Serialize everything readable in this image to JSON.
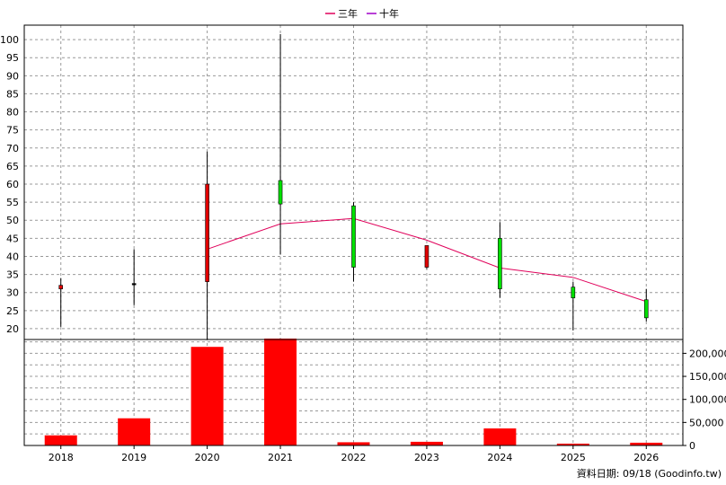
{
  "chart_data": {
    "type": "candlestick-with-volume",
    "legend": [
      {
        "name": "三年",
        "color": "#e0005a"
      },
      {
        "name": "十年",
        "color": "#a000c8"
      }
    ],
    "categories": [
      "2018",
      "2019",
      "2020",
      "2021",
      "2022",
      "2023",
      "2024",
      "2025",
      "2026"
    ],
    "price_axis": {
      "range": [
        17,
        104
      ],
      "ticks": [
        20,
        25,
        30,
        35,
        40,
        45,
        50,
        55,
        60,
        65,
        70,
        75,
        80,
        85,
        90,
        95,
        100
      ]
    },
    "candles": [
      {
        "open": 31,
        "high": 34,
        "low": 20.5,
        "close": 32,
        "color": "#e00000"
      },
      {
        "open": 32.5,
        "high": 42,
        "low": 26.5,
        "close": 32.5,
        "color": "#000000"
      },
      {
        "open": 33,
        "high": 69,
        "low": 17,
        "close": 60,
        "color": "#e00000"
      },
      {
        "open": 61,
        "high": 101.5,
        "low": 40.5,
        "close": 54.5,
        "color": "#00e000"
      },
      {
        "open": 54,
        "high": 55,
        "low": 33,
        "close": 37,
        "color": "#00e000"
      },
      {
        "open": 37,
        "high": 43,
        "low": 36.5,
        "close": 43,
        "color": "#e00000"
      },
      {
        "open": 45,
        "high": 49.5,
        "low": 28.5,
        "close": 31,
        "color": "#00e000"
      },
      {
        "open": 31.5,
        "high": 33,
        "low": 19.5,
        "close": 28.5,
        "color": "#00e000"
      },
      {
        "open": 28,
        "high": 31,
        "low": 22,
        "close": 23,
        "color": "#00e000"
      }
    ],
    "three_year_line": [
      null,
      null,
      42,
      49,
      50.5,
      44.5,
      36.8,
      34.2,
      27.5
    ],
    "volume_axis": {
      "range": [
        0,
        230000
      ],
      "ticks": [
        0,
        50000,
        100000,
        150000,
        200000
      ],
      "tick_labels": [
        "0",
        "50,000",
        "100,000",
        "150,000",
        "200,000"
      ]
    },
    "volumes": [
      22000,
      59000,
      214000,
      232000,
      7000,
      8000,
      37000,
      4000,
      6000
    ],
    "volume_color": "#ff0000"
  },
  "footer": {
    "source_text": "資料日期: 09/18  (Goodinfo.tw)"
  }
}
